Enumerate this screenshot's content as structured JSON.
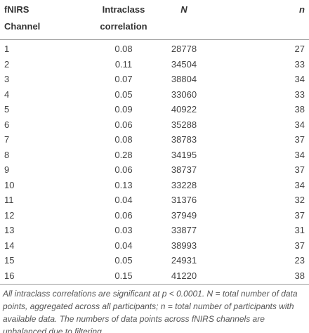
{
  "table": {
    "header": [
      [
        "fNIRS",
        "Channel"
      ],
      [
        "Intraclass",
        "correlation"
      ],
      [
        "N"
      ],
      [
        "n"
      ]
    ],
    "rows": [
      [
        "1",
        "0.08",
        "28778",
        "27"
      ],
      [
        "2",
        "0.11",
        "34504",
        "33"
      ],
      [
        "3",
        "0.07",
        "38804",
        "34"
      ],
      [
        "4",
        "0.05",
        "33060",
        "33"
      ],
      [
        "5",
        "0.09",
        "40922",
        "38"
      ],
      [
        "6",
        "0.06",
        "35288",
        "34"
      ],
      [
        "7",
        "0.08",
        "38783",
        "37"
      ],
      [
        "8",
        "0.28",
        "34195",
        "34"
      ],
      [
        "9",
        "0.06",
        "38737",
        "37"
      ],
      [
        "10",
        "0.13",
        "33228",
        "34"
      ],
      [
        "11",
        "0.04",
        "31376",
        "32"
      ],
      [
        "12",
        "0.06",
        "37949",
        "37"
      ],
      [
        "13",
        "0.03",
        "33877",
        "31"
      ],
      [
        "14",
        "0.04",
        "38993",
        "37"
      ],
      [
        "15",
        "0.05",
        "24931",
        "23"
      ],
      [
        "16",
        "0.15",
        "41220",
        "38"
      ]
    ],
    "footnote": "All intraclass correlations are significant at p < 0.0001. N = total number of data points, aggregated across all participants; n = total number of participants with available data. The numbers of data points across fNIRS channels are unbalanced due to filtering."
  }
}
